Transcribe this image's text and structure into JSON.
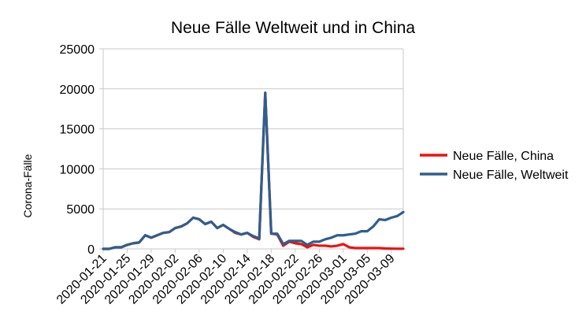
{
  "chart_data": {
    "type": "line",
    "title": "Neue Fälle Weltweit und in China",
    "xlabel": "",
    "ylabel": "Corona-Fälle",
    "ylim": [
      0,
      25000
    ],
    "yticks": [
      0,
      5000,
      10000,
      15000,
      20000,
      25000
    ],
    "grid": "horizontal",
    "legend_position": "right",
    "x_tick_labels": [
      "2020-01-21",
      "2020-01-25",
      "2020-01-29",
      "2020-02-02",
      "2020-02-06",
      "2020-02-10",
      "2020-02-14",
      "2020-02-18",
      "2020-02-22",
      "2020-02-26",
      "2020-03-01",
      "2020-03-05",
      "2020-03-09"
    ],
    "x": [
      "2020-01-21",
      "2020-01-22",
      "2020-01-23",
      "2020-01-24",
      "2020-01-25",
      "2020-01-26",
      "2020-01-27",
      "2020-01-28",
      "2020-01-29",
      "2020-01-30",
      "2020-01-31",
      "2020-02-01",
      "2020-02-02",
      "2020-02-03",
      "2020-02-04",
      "2020-02-05",
      "2020-02-06",
      "2020-02-07",
      "2020-02-08",
      "2020-02-09",
      "2020-02-10",
      "2020-02-11",
      "2020-02-12",
      "2020-02-13",
      "2020-02-14",
      "2020-02-15",
      "2020-02-16",
      "2020-02-17",
      "2020-02-18",
      "2020-02-19",
      "2020-02-20",
      "2020-02-21",
      "2020-02-22",
      "2020-02-23",
      "2020-02-24",
      "2020-02-25",
      "2020-02-26",
      "2020-02-27",
      "2020-02-28",
      "2020-02-29",
      "2020-03-01",
      "2020-03-02",
      "2020-03-03",
      "2020-03-04",
      "2020-03-05",
      "2020-03-06",
      "2020-03-07",
      "2020-03-08",
      "2020-03-09",
      "2020-03-10",
      "2020-03-11"
    ],
    "series": [
      {
        "name": "Neue Fälle, China",
        "color": "#ee1111",
        "values": [
          0,
          0,
          200,
          200,
          500,
          700,
          800,
          1700,
          1400,
          1700,
          2000,
          2100,
          2600,
          2800,
          3200,
          3900,
          3700,
          3100,
          3400,
          2600,
          3000,
          2500,
          2000,
          1800,
          2000,
          1500,
          1200,
          19500,
          1900,
          1800,
          400,
          900,
          700,
          600,
          200,
          500,
          400,
          400,
          300,
          400,
          600,
          200,
          100,
          100,
          100,
          100,
          100,
          50,
          30,
          20,
          20
        ]
      },
      {
        "name": "Neue Fälle, Weltweit",
        "color": "#2e5f8e",
        "values": [
          0,
          0,
          200,
          200,
          500,
          700,
          800,
          1700,
          1400,
          1700,
          2000,
          2100,
          2600,
          2800,
          3200,
          3900,
          3700,
          3100,
          3400,
          2600,
          3000,
          2500,
          2100,
          1800,
          2000,
          1600,
          1300,
          19500,
          1900,
          1900,
          600,
          1000,
          1000,
          1000,
          500,
          900,
          900,
          1200,
          1400,
          1700,
          1700,
          1800,
          1900,
          2200,
          2200,
          2800,
          3700,
          3600,
          3900,
          4100,
          4600
        ]
      }
    ]
  }
}
